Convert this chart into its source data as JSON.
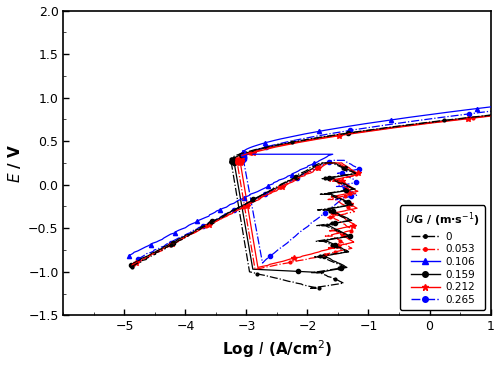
{
  "title": "",
  "xlabel": "Log $I$ (A/cm$^{2}$)",
  "ylabel": "$E$ / V",
  "xlim": [
    -6,
    1
  ],
  "ylim": [
    -1.5,
    2.0
  ],
  "xticks": [
    -5,
    -4,
    -3,
    -2,
    -1,
    0,
    1
  ],
  "yticks": [
    -1.5,
    -1.0,
    -0.5,
    0.0,
    0.5,
    1.0,
    1.5,
    2.0
  ],
  "series": [
    {
      "label": "0",
      "color": "#000000",
      "linestyle": "-.",
      "marker": ".",
      "markersize": 4,
      "zorder": 6
    },
    {
      "label": "0.053",
      "color": "#ff0000",
      "linestyle": "-.",
      "marker": ".",
      "markersize": 4,
      "zorder": 5
    },
    {
      "label": "0.106",
      "color": "#0000ff",
      "linestyle": "-",
      "marker": "^",
      "markersize": 3,
      "zorder": 4
    },
    {
      "label": "0.159",
      "color": "#000000",
      "linestyle": "-",
      "marker": "o",
      "markersize": 3,
      "zorder": 3
    },
    {
      "label": "0.212",
      "color": "#ff0000",
      "linestyle": "-",
      "marker": "*",
      "markersize": 4,
      "zorder": 2
    },
    {
      "label": "0.265",
      "color": "#0000ff",
      "linestyle": "-.",
      "marker": "o",
      "markersize": 3,
      "zorder": 1
    }
  ]
}
